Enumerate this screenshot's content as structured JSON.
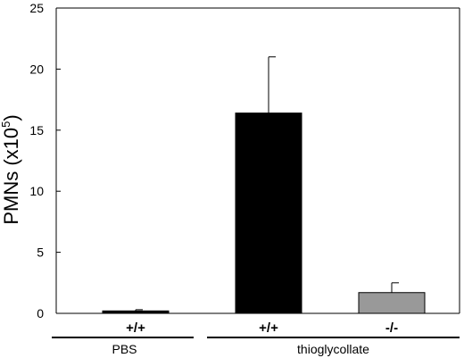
{
  "chart_data": {
    "type": "bar",
    "ylabel_main": "PMNs (x10",
    "ylabel_exponent": "5",
    "ylabel_close": ")",
    "xlabel": "",
    "ylim": [
      0,
      25
    ],
    "yticks": [
      "0",
      "5",
      "10",
      "15",
      "20",
      "25"
    ],
    "ytick_values": [
      0,
      5,
      10,
      15,
      20,
      25
    ],
    "categories": [
      "+/+",
      "+/+",
      "-/-"
    ],
    "values": [
      0.2,
      16.4,
      1.7
    ],
    "error_upper": [
      0.1,
      4.6,
      0.8
    ],
    "bar_colors": [
      "#000000",
      "#000000",
      "#999999"
    ],
    "groups": [
      {
        "label": "PBS",
        "members": [
          0
        ]
      },
      {
        "label": "thioglycollate",
        "members": [
          1,
          2
        ]
      }
    ],
    "grid": false,
    "legend": "none"
  }
}
